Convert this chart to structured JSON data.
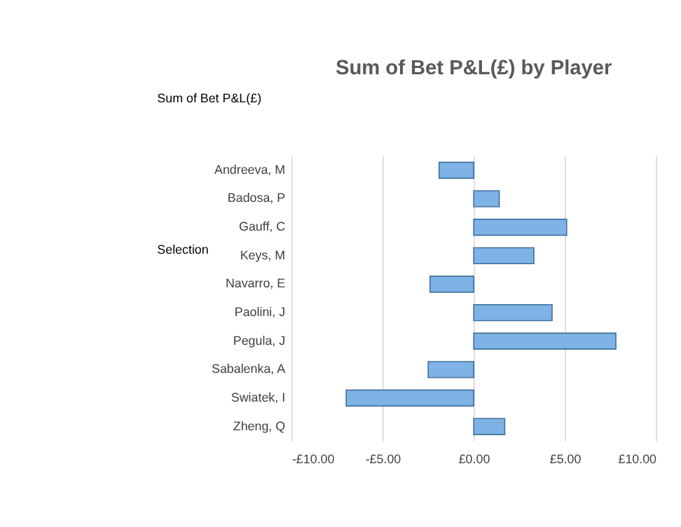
{
  "chart_data": {
    "type": "bar",
    "orientation": "horizontal",
    "title": "Sum of Bet P&L(£) by Player",
    "ylabel": "Selection",
    "annotations": [
      "Sum of Bet P&L(£)"
    ],
    "categories": [
      "Andreeva, M",
      "Badosa, P",
      "Gauff, C",
      "Keys, M",
      "Navarro, E",
      "Paolini, J",
      "Pegula, J",
      "Sabalenka, A",
      "Swiatek, I",
      "Zheng, Q"
    ],
    "values": [
      -1.9,
      1.4,
      5.1,
      3.3,
      -2.4,
      4.3,
      7.8,
      -2.5,
      -7.0,
      1.7
    ],
    "color": "#7fb2e5",
    "xlim": [
      -10,
      10
    ],
    "xticks": [
      {
        "value": -10,
        "label": "-£10.00"
      },
      {
        "value": -5,
        "label": "-£5.00"
      },
      {
        "value": 0,
        "label": "£0.00"
      },
      {
        "value": 5,
        "label": "£5.00"
      },
      {
        "value": 10,
        "label": "£10.00"
      }
    ],
    "grid": "x"
  }
}
